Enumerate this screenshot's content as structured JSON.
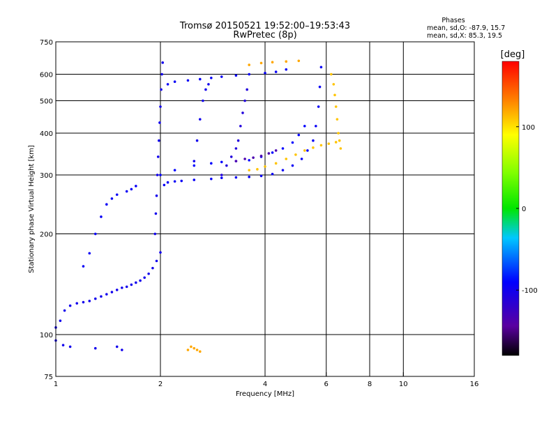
{
  "chart_data": {
    "type": "scatter",
    "title": "Tromsø 20150521 19:52:00–19:53:43",
    "subtitle": "RwPretec (8p)",
    "xlabel": "Frequency [MHz]",
    "ylabel": "Stationary phase Virtual Height [km]",
    "x_scale": "log",
    "y_scale": "log",
    "xlim": [
      1,
      16
    ],
    "ylim": [
      75,
      750
    ],
    "x_ticks": [
      {
        "value": 1,
        "label": "1"
      },
      {
        "value": 2,
        "label": "2"
      },
      {
        "value": 4,
        "label": "4"
      },
      {
        "value": 6,
        "label": "6"
      },
      {
        "value": 8,
        "label": "8"
      },
      {
        "value": 10,
        "label": "10"
      },
      {
        "value": 16,
        "label": "16"
      }
    ],
    "x_gridlines": [
      2,
      4,
      6,
      8,
      10
    ],
    "y_ticks": [
      {
        "value": 75,
        "label": "75"
      },
      {
        "value": 100,
        "label": "100"
      },
      {
        "value": 200,
        "label": "200"
      },
      {
        "value": 300,
        "label": "300"
      },
      {
        "value": 400,
        "label": "400"
      },
      {
        "value": 500,
        "label": "500"
      },
      {
        "value": 600,
        "label": "600"
      },
      {
        "value": 750,
        "label": "750"
      }
    ],
    "y_gridlines": [
      100,
      200,
      300,
      400,
      500,
      600
    ],
    "grid": true,
    "stats": {
      "heading": "Phases",
      "lines": [
        "mean, sd,O: -87.9, 15.7",
        "mean, sd,X:  85.3, 19.5"
      ]
    },
    "colorbar": {
      "label": "[deg]",
      "range": [
        -180,
        180
      ],
      "ticks": [
        {
          "value": 100,
          "label": "100"
        },
        {
          "value": 0,
          "label": "0"
        },
        {
          "value": -100,
          "label": "-100"
        }
      ]
    },
    "traces": [
      {
        "phase": -100,
        "points": [
          [
            1.0,
            105
          ],
          [
            1.03,
            110
          ],
          [
            1.06,
            118
          ],
          [
            1.1,
            122
          ],
          [
            1.15,
            124
          ],
          [
            1.2,
            125
          ],
          [
            1.25,
            126
          ],
          [
            1.3,
            128
          ],
          [
            1.35,
            130
          ],
          [
            1.4,
            132
          ],
          [
            1.45,
            134
          ],
          [
            1.5,
            136
          ],
          [
            1.55,
            138
          ],
          [
            1.6,
            139
          ],
          [
            1.65,
            141
          ],
          [
            1.7,
            143
          ],
          [
            1.75,
            145
          ],
          [
            1.8,
            148
          ],
          [
            1.85,
            152
          ],
          [
            1.9,
            158
          ],
          [
            1.95,
            166
          ],
          [
            2.0,
            176
          ]
        ]
      },
      {
        "phase": -95,
        "points": [
          [
            1.2,
            160
          ],
          [
            1.25,
            175
          ],
          [
            1.3,
            200
          ],
          [
            1.35,
            225
          ],
          [
            1.4,
            245
          ],
          [
            1.45,
            255
          ],
          [
            1.5,
            262
          ],
          [
            1.6,
            268
          ],
          [
            1.65,
            272
          ],
          [
            1.7,
            278
          ]
        ]
      },
      {
        "phase": -100,
        "points": [
          [
            1.93,
            200
          ],
          [
            1.94,
            230
          ],
          [
            1.95,
            260
          ],
          [
            1.96,
            300
          ],
          [
            1.97,
            340
          ],
          [
            1.98,
            380
          ],
          [
            1.99,
            430
          ],
          [
            2.0,
            480
          ],
          [
            2.01,
            540
          ],
          [
            2.02,
            600
          ],
          [
            2.03,
            650
          ]
        ]
      },
      {
        "phase": -95,
        "points": [
          [
            2.05,
            280
          ],
          [
            2.1,
            285
          ],
          [
            2.2,
            287
          ],
          [
            2.3,
            288
          ],
          [
            2.5,
            290
          ],
          [
            2.8,
            292
          ],
          [
            3.0,
            294
          ],
          [
            3.3,
            295
          ],
          [
            3.6,
            296
          ],
          [
            3.9,
            298
          ],
          [
            4.2,
            302
          ],
          [
            4.5,
            310
          ],
          [
            4.8,
            320
          ],
          [
            5.1,
            335
          ],
          [
            5.3,
            355
          ],
          [
            5.5,
            380
          ],
          [
            5.6,
            420
          ],
          [
            5.7,
            480
          ],
          [
            5.75,
            550
          ],
          [
            5.8,
            630
          ]
        ]
      },
      {
        "phase": -90,
        "points": [
          [
            2.0,
            300
          ],
          [
            2.2,
            310
          ],
          [
            2.5,
            320
          ],
          [
            2.8,
            325
          ],
          [
            3.0,
            328
          ],
          [
            3.3,
            330
          ],
          [
            3.6,
            332
          ],
          [
            3.9,
            340
          ],
          [
            4.2,
            350
          ],
          [
            4.5,
            360
          ],
          [
            4.8,
            375
          ],
          [
            5.0,
            395
          ],
          [
            5.2,
            420
          ]
        ]
      },
      {
        "phase": -95,
        "points": [
          [
            2.1,
            560
          ],
          [
            2.2,
            570
          ],
          [
            2.4,
            575
          ],
          [
            2.6,
            580
          ],
          [
            2.8,
            585
          ],
          [
            3.0,
            590
          ],
          [
            3.3,
            595
          ],
          [
            3.6,
            600
          ],
          [
            4.0,
            605
          ],
          [
            4.3,
            610
          ],
          [
            4.6,
            620
          ]
        ]
      },
      {
        "phase": -100,
        "points": [
          [
            2.5,
            330
          ],
          [
            2.55,
            380
          ],
          [
            2.6,
            440
          ],
          [
            2.65,
            500
          ],
          [
            2.7,
            540
          ],
          [
            2.75,
            560
          ]
        ]
      },
      {
        "phase": -110,
        "points": [
          [
            3.0,
            300
          ],
          [
            3.1,
            320
          ],
          [
            3.2,
            340
          ],
          [
            3.3,
            360
          ],
          [
            3.35,
            380
          ],
          [
            3.4,
            420
          ],
          [
            3.45,
            460
          ],
          [
            3.5,
            500
          ],
          [
            3.55,
            540
          ]
        ]
      },
      {
        "phase": -135,
        "points": [
          [
            3.3,
            330
          ],
          [
            3.5,
            335
          ],
          [
            3.7,
            338
          ],
          [
            3.9,
            342
          ],
          [
            4.1,
            348
          ],
          [
            4.3,
            355
          ]
        ]
      },
      {
        "phase": 110,
        "points": [
          [
            3.6,
            310
          ],
          [
            3.8,
            312
          ],
          [
            4.0,
            318
          ],
          [
            4.3,
            325
          ],
          [
            4.6,
            335
          ],
          [
            4.9,
            345
          ],
          [
            5.2,
            355
          ],
          [
            5.5,
            362
          ],
          [
            5.8,
            368
          ],
          [
            6.1,
            372
          ],
          [
            6.4,
            376
          ]
        ]
      },
      {
        "phase": 110,
        "points": [
          [
            6.2,
            600
          ],
          [
            6.3,
            560
          ],
          [
            6.35,
            520
          ],
          [
            6.4,
            480
          ],
          [
            6.45,
            440
          ],
          [
            6.5,
            400
          ],
          [
            6.55,
            380
          ],
          [
            6.6,
            360
          ]
        ]
      },
      {
        "phase": 120,
        "points": [
          [
            3.6,
            640
          ],
          [
            3.9,
            648
          ],
          [
            4.2,
            652
          ],
          [
            4.6,
            655
          ],
          [
            5.0,
            658
          ]
        ]
      },
      {
        "phase": 120,
        "points": [
          [
            2.4,
            90
          ],
          [
            2.45,
            92
          ],
          [
            2.5,
            91
          ],
          [
            2.55,
            90
          ],
          [
            2.6,
            89
          ]
        ]
      },
      {
        "phase": -100,
        "points": [
          [
            1.0,
            96
          ],
          [
            1.05,
            93
          ],
          [
            1.1,
            92
          ],
          [
            1.3,
            91
          ],
          [
            1.5,
            92
          ],
          [
            1.55,
            90
          ]
        ]
      }
    ]
  }
}
